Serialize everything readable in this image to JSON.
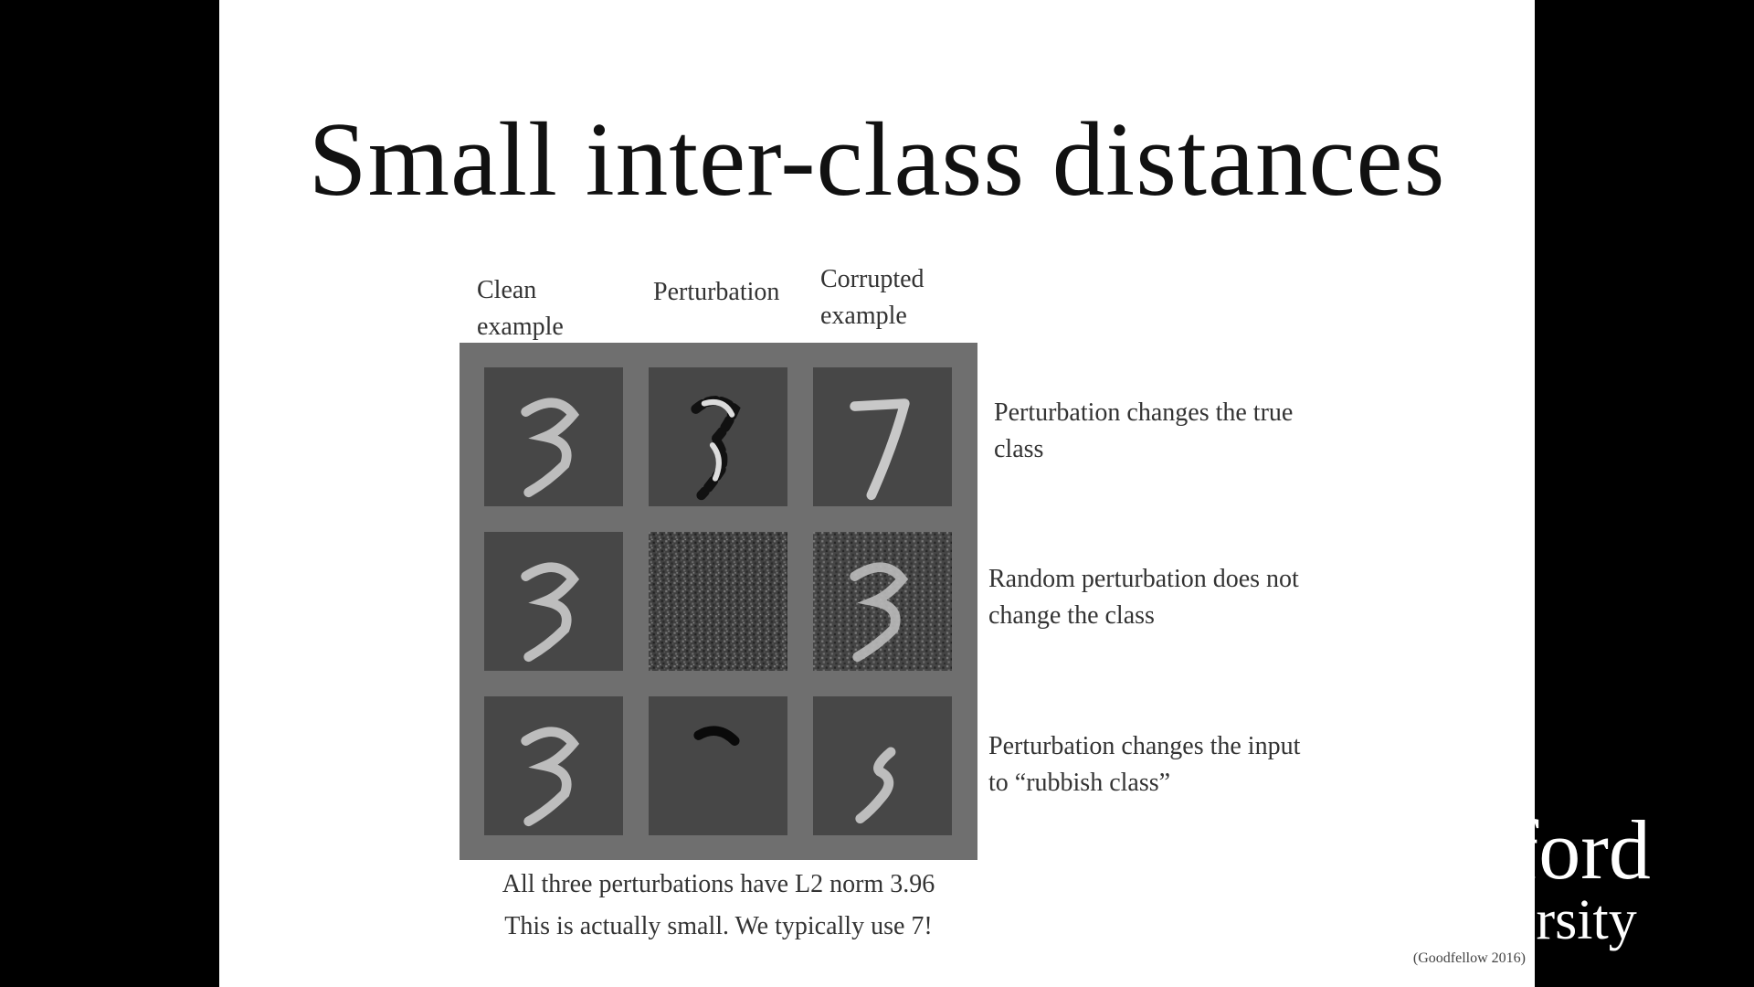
{
  "slide": {
    "title": "Small inter-class distances",
    "columns": {
      "clean": [
        "Clean",
        "example"
      ],
      "perturbation": "Perturbation",
      "corrupted": [
        "Corrupted",
        "example"
      ]
    },
    "rows": [
      {
        "note": [
          "Perturbation changes the true",
          "class"
        ]
      },
      {
        "note": [
          "Random perturbation does not",
          "change the class"
        ]
      },
      {
        "note": [
          "Perturbation changes the input",
          "to “rubbish class”"
        ]
      }
    ],
    "caption": [
      "All three perturbations have L2 norm 3.96",
      "This is actually small. We typically use 7!"
    ],
    "citation": "(Goodfellow 2016)"
  },
  "logo": {
    "line1": "Stanford",
    "line2": "University"
  }
}
